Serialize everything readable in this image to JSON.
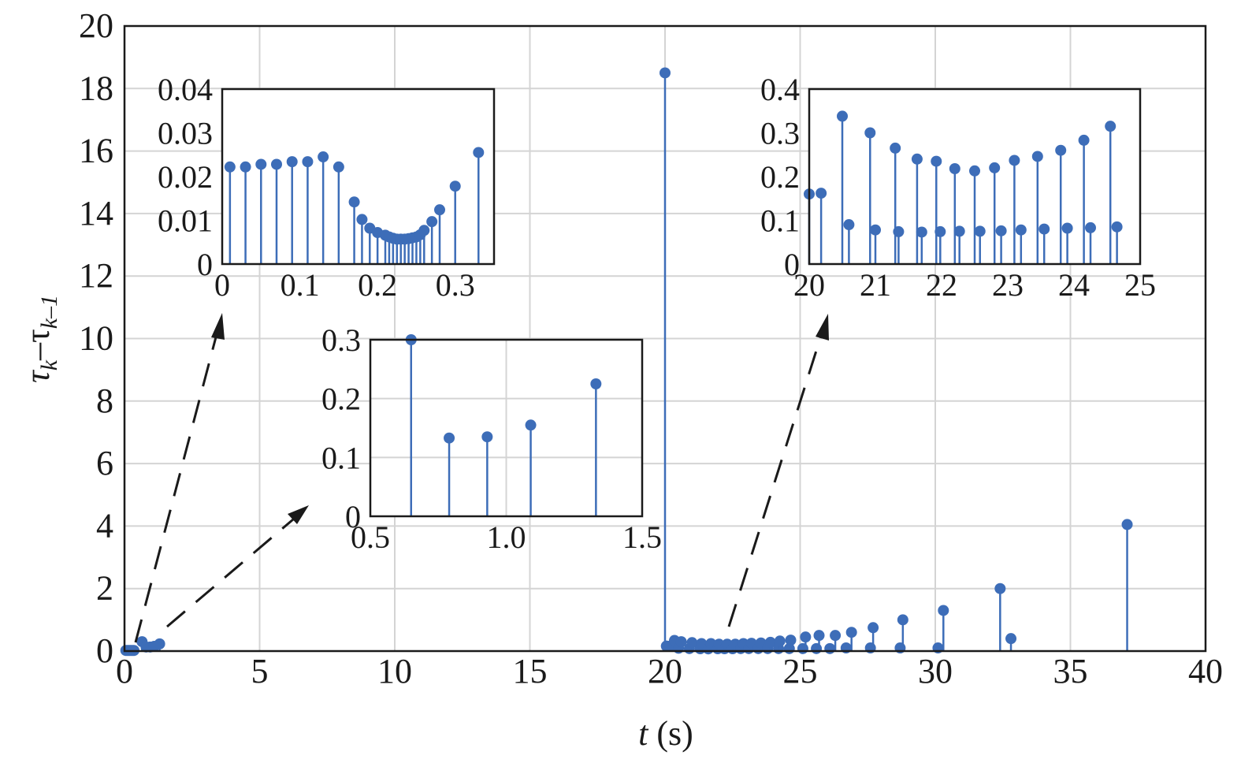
{
  "chart_data": [
    {
      "id": "main",
      "type": "stem",
      "xlabel_var": "t",
      "xlabel_unit": " (s)",
      "ylabel_base": "τ",
      "ylabel_sub1": "k",
      "ylabel_sep": "–τ",
      "ylabel_sub2": "k–1",
      "xlim": [
        0,
        40
      ],
      "ylim": [
        0,
        20
      ],
      "xticks": [
        "0",
        "5",
        "10",
        "15",
        "20",
        "25",
        "30",
        "35",
        "40"
      ],
      "yticks": [
        "0",
        "2",
        "4",
        "6",
        "8",
        "10",
        "12",
        "14",
        "16",
        "18",
        "20"
      ],
      "grid": true,
      "x": [
        0.05,
        0.1,
        0.15,
        0.2,
        0.25,
        0.3,
        0.35,
        0.65,
        0.8,
        0.95,
        1.1,
        1.3,
        20.0,
        20.05,
        20.2,
        20.35,
        20.5,
        20.6,
        20.9,
        21.0,
        21.3,
        21.35,
        21.6,
        21.7,
        21.95,
        22.0,
        22.2,
        22.3,
        22.5,
        22.6,
        22.8,
        22.9,
        23.1,
        23.2,
        23.45,
        23.55,
        23.8,
        23.9,
        24.2,
        24.25,
        24.6,
        24.65,
        25.1,
        25.2,
        25.6,
        25.7,
        26.1,
        26.3,
        26.7,
        26.9,
        27.6,
        27.7,
        28.7,
        28.8,
        30.1,
        30.3,
        32.4,
        32.8,
        37.1
      ],
      "y": [
        0.02,
        0.02,
        0.02,
        0.02,
        0.02,
        0.02,
        0.02,
        0.3,
        0.13,
        0.13,
        0.15,
        0.23,
        18.5,
        0.16,
        0.16,
        0.34,
        0.09,
        0.3,
        0.08,
        0.27,
        0.075,
        0.24,
        0.07,
        0.24,
        0.075,
        0.22,
        0.075,
        0.22,
        0.075,
        0.22,
        0.08,
        0.24,
        0.08,
        0.25,
        0.08,
        0.26,
        0.08,
        0.28,
        0.08,
        0.32,
        0.08,
        0.35,
        0.08,
        0.45,
        0.08,
        0.5,
        0.08,
        0.5,
        0.1,
        0.6,
        0.1,
        0.75,
        0.1,
        1.0,
        0.1,
        1.3,
        2.0,
        0.4,
        4.05
      ]
    },
    {
      "id": "inset_a",
      "type": "stem",
      "xlim": [
        0,
        0.35
      ],
      "ylim": [
        0,
        0.04
      ],
      "xticks": [
        "0",
        "0.1",
        "0.2",
        "0.3"
      ],
      "yticks": [
        "0",
        "0.01",
        "0.02",
        "0.03",
        "0.04"
      ],
      "x": [
        0.01,
        0.03,
        0.05,
        0.07,
        0.09,
        0.11,
        0.13,
        0.15,
        0.17,
        0.18,
        0.19,
        0.2,
        0.21,
        0.215,
        0.22,
        0.225,
        0.23,
        0.235,
        0.24,
        0.245,
        0.25,
        0.255,
        0.26,
        0.27,
        0.28,
        0.3,
        0.33
      ],
      "y": [
        0.0222,
        0.0222,
        0.0228,
        0.0228,
        0.0234,
        0.0234,
        0.0245,
        0.0222,
        0.0142,
        0.0102,
        0.0082,
        0.0072,
        0.0066,
        0.0062,
        0.0059,
        0.0057,
        0.0057,
        0.0057,
        0.0058,
        0.006,
        0.0062,
        0.0067,
        0.0077,
        0.0097,
        0.0124,
        0.0178,
        0.0255
      ]
    },
    {
      "id": "inset_b",
      "type": "stem",
      "xlim": [
        0.5,
        1.5
      ],
      "ylim": [
        0,
        0.3
      ],
      "xticks": [
        "0.5",
        "1.0",
        "1.5"
      ],
      "yticks": [
        "0",
        "0.1",
        "0.2",
        "0.3"
      ],
      "x": [
        0.65,
        0.79,
        0.93,
        1.09,
        1.33
      ],
      "y": [
        0.3,
        0.133,
        0.135,
        0.155,
        0.225
      ]
    },
    {
      "id": "inset_c",
      "type": "stem",
      "xlim": [
        20,
        25
      ],
      "ylim": [
        0,
        0.4
      ],
      "xticks": [
        "20",
        "21",
        "22",
        "23",
        "24",
        "25"
      ],
      "yticks": [
        "0",
        "0.1",
        "0.2",
        "0.3",
        "0.4"
      ],
      "x": [
        20.0,
        20.18,
        20.5,
        20.6,
        20.92,
        21.0,
        21.3,
        21.35,
        21.63,
        21.7,
        21.92,
        21.98,
        22.2,
        22.27,
        22.5,
        22.58,
        22.8,
        22.9,
        23.1,
        23.2,
        23.45,
        23.55,
        23.8,
        23.9,
        24.15,
        24.25,
        24.55,
        24.65
      ],
      "y": [
        0.16,
        0.162,
        0.338,
        0.09,
        0.3,
        0.078,
        0.265,
        0.074,
        0.24,
        0.073,
        0.235,
        0.074,
        0.218,
        0.075,
        0.213,
        0.075,
        0.22,
        0.076,
        0.237,
        0.078,
        0.246,
        0.08,
        0.26,
        0.082,
        0.283,
        0.083,
        0.315,
        0.085
      ]
    }
  ]
}
